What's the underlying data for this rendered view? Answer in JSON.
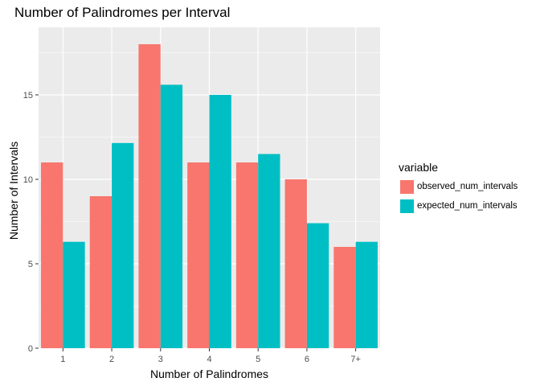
{
  "chart_data": {
    "type": "bar",
    "title": "Number of Palindromes per Interval",
    "xlabel": "Number of Palindromes",
    "ylabel": "Number of Intervals",
    "categories": [
      "1",
      "2",
      "3",
      "4",
      "5",
      "6",
      "7+"
    ],
    "series": [
      {
        "name": "observed_num_intervals",
        "values": [
          11,
          9,
          18,
          11,
          11,
          10,
          6
        ],
        "color": "#F8766D"
      },
      {
        "name": "expected_num_intervals",
        "values": [
          6.3,
          12.15,
          15.6,
          15.0,
          11.5,
          7.4,
          6.3
        ],
        "color": "#00BFC4"
      }
    ],
    "ylim": [
      0,
      19
    ],
    "yticks": [
      0,
      5,
      10,
      15
    ],
    "legend_title": "variable",
    "legend_position": "right",
    "grid": true,
    "panel_background": "#EBEBEB"
  }
}
